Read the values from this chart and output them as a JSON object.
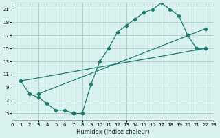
{
  "xlabel": "Humidex (Indice chaleur)",
  "ylabel": "",
  "bg_color": "#d8f0ee",
  "grid_color": "#b0d0cc",
  "line_color": "#1a7a6e",
  "xlim": [
    0,
    23
  ],
  "ylim": [
    4,
    22
  ],
  "xticks": [
    0,
    1,
    2,
    3,
    4,
    5,
    6,
    7,
    8,
    9,
    10,
    11,
    12,
    13,
    14,
    15,
    16,
    17,
    18,
    19,
    20,
    21,
    22,
    23
  ],
  "yticks": [
    5,
    7,
    9,
    11,
    13,
    15,
    17,
    19,
    21
  ],
  "line1_x": [
    1,
    2,
    3,
    4,
    5,
    6,
    7,
    7,
    8,
    9,
    10,
    11,
    12,
    13,
    14,
    15,
    16,
    17,
    18,
    19,
    20,
    21,
    22
  ],
  "line1_y": [
    10,
    8,
    7.5,
    6.5,
    5.5,
    5.5,
    5,
    5,
    5,
    9.5,
    13,
    15,
    17.5,
    18.5,
    19.5,
    20.5,
    21,
    22,
    21,
    20,
    17,
    15,
    15
  ],
  "line2_x": [
    1,
    22
  ],
  "line2_y": [
    10,
    15
  ],
  "line3_x": [
    3,
    22
  ],
  "line3_y": [
    8,
    18
  ]
}
